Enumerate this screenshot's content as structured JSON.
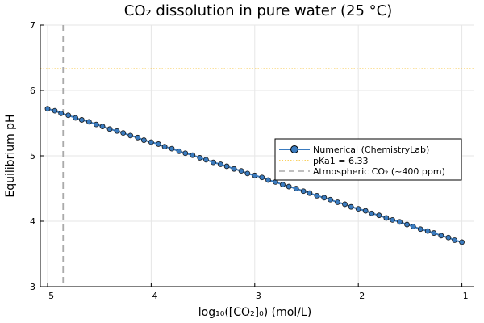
{
  "chart_data": {
    "type": "line",
    "title": "CO₂ dissolution in pure water (25 °C)",
    "xlabel": "log₁₀([CO₂]₀) (mol/L)",
    "ylabel": "Equilibrium pH",
    "xlim": [
      -5.07,
      -0.88
    ],
    "ylim": [
      3,
      7
    ],
    "xticks": [
      -5,
      -4,
      -3,
      -2,
      -1
    ],
    "xtick_labels": [
      "−5",
      "−4",
      "−3",
      "−2",
      "−1"
    ],
    "yticks": [
      3,
      4,
      5,
      6,
      7
    ],
    "ytick_labels": [
      "3",
      "4",
      "5",
      "6",
      "7"
    ],
    "grid": true,
    "legend_placement": "right",
    "series": [
      {
        "name": "Numerical (ChemistryLab)",
        "color": "#3a7bbf",
        "marker": "circle",
        "x": [
          -5,
          -4.93,
          -4.87,
          -4.8,
          -4.73,
          -4.67,
          -4.6,
          -4.53,
          -4.47,
          -4.4,
          -4.33,
          -4.27,
          -4.2,
          -4.13,
          -4.07,
          -4,
          -3.93,
          -3.87,
          -3.8,
          -3.73,
          -3.67,
          -3.6,
          -3.53,
          -3.47,
          -3.4,
          -3.33,
          -3.27,
          -3.2,
          -3.13,
          -3.07,
          -3,
          -2.93,
          -2.87,
          -2.8,
          -2.73,
          -2.67,
          -2.6,
          -2.53,
          -2.47,
          -2.4,
          -2.33,
          -2.27,
          -2.2,
          -2.13,
          -2.07,
          -2,
          -1.93,
          -1.87,
          -1.8,
          -1.73,
          -1.67,
          -1.6,
          -1.53,
          -1.47,
          -1.4,
          -1.33,
          -1.27,
          -1.2,
          -1.13,
          -1.07,
          -1
        ],
        "y": [
          5.72,
          5.69,
          5.65,
          5.62,
          5.58,
          5.55,
          5.52,
          5.48,
          5.45,
          5.41,
          5.38,
          5.35,
          5.31,
          5.28,
          5.24,
          5.21,
          5.18,
          5.14,
          5.11,
          5.07,
          5.04,
          5.01,
          4.97,
          4.94,
          4.9,
          4.87,
          4.84,
          4.8,
          4.77,
          4.73,
          4.7,
          4.67,
          4.63,
          4.6,
          4.56,
          4.53,
          4.5,
          4.46,
          4.43,
          4.39,
          4.36,
          4.33,
          4.29,
          4.26,
          4.22,
          4.19,
          4.16,
          4.12,
          4.09,
          4.05,
          4.02,
          3.99,
          3.95,
          3.92,
          3.88,
          3.85,
          3.82,
          3.78,
          3.75,
          3.71,
          3.68
        ]
      },
      {
        "name": "pKa1 = 6.33",
        "color": "#f5b301",
        "style": "dotted",
        "hline": 6.33
      },
      {
        "name": "Atmospheric CO₂ (~400 ppm)",
        "color": "#aaaaaa",
        "style": "dashed",
        "vline": -4.85
      }
    ]
  }
}
